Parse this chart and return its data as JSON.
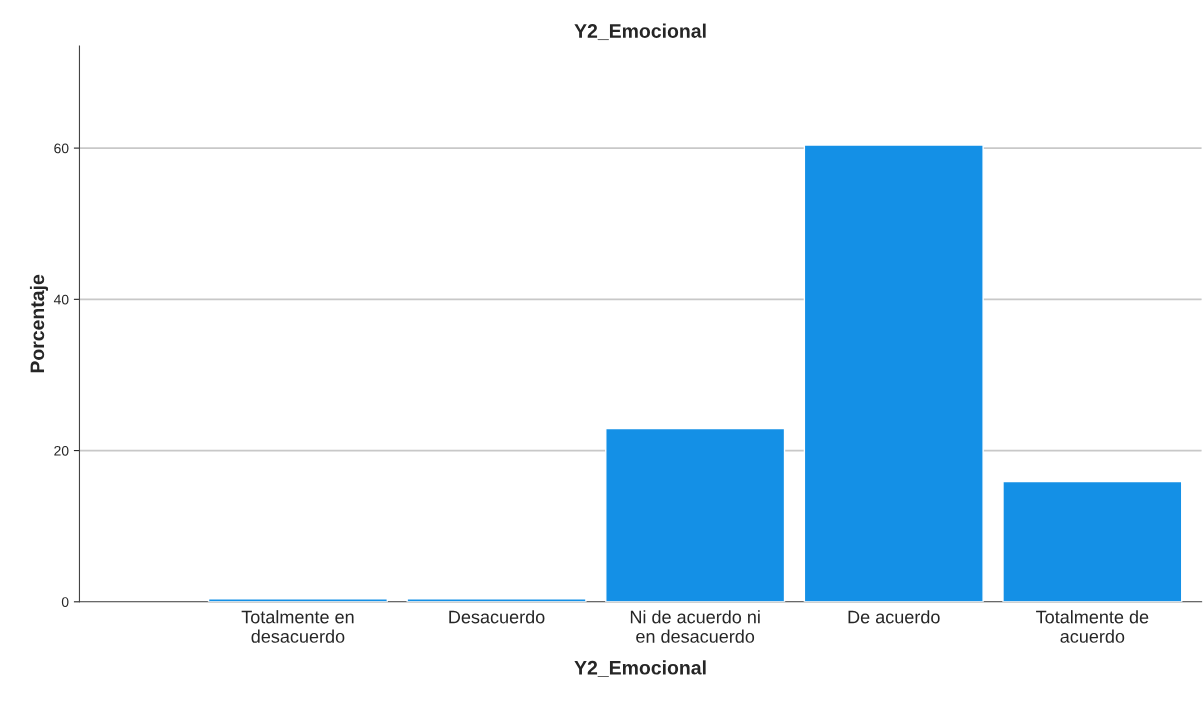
{
  "chart_data": {
    "type": "bar",
    "title": "Y2_Emocional",
    "xlabel": "Y2_Emocional",
    "ylabel": "Porcentaje",
    "categories": [
      "Totalmente en\ndesacuerdo",
      "Desacuerdo",
      "Ni de acuerdo ni\nen desacuerdo",
      "De acuerdo",
      "Totalmente de\nacuerdo"
    ],
    "values": [
      0.4,
      0.4,
      22.9,
      60.4,
      15.9
    ],
    "color": "#1490e6",
    "ylim": [
      0,
      73.5
    ],
    "yticks": [
      0,
      20,
      40,
      60
    ],
    "grid": "y",
    "legend": false
  }
}
